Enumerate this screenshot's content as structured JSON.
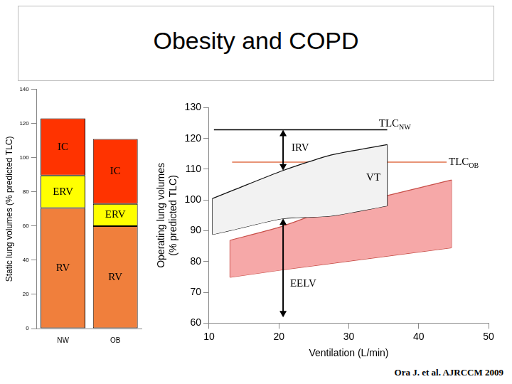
{
  "title": "Obesity and COPD",
  "source": "Ora J. et al. AJRCCM 2009",
  "chart_data": [
    {
      "type": "bar",
      "y_label": "Static lung volumes (% predicted TLC)",
      "categories": [
        "NW",
        "OB"
      ],
      "series": [
        {
          "name": "RV",
          "color": "#F07F3C",
          "values": [
            70.6,
            60
          ]
        },
        {
          "name": "ERV",
          "color": "#FFFF00",
          "values": [
            19,
            13
          ]
        },
        {
          "name": "IC",
          "color": "#FF3300",
          "values": [
            33.4,
            38
          ]
        }
      ],
      "stacked": true,
      "ylim": [
        0,
        140
      ],
      "yticks": [
        0,
        20,
        40,
        60,
        80,
        100,
        120,
        140
      ],
      "grid": false
    },
    {
      "type": "line",
      "x_label": "Ventilation (L/min)",
      "y_label": [
        "Operating lung volumes",
        "(% predicted TLC)"
      ],
      "series": [
        {
          "name": "NW",
          "color": "#F2F2F2",
          "x": [
            10.5,
            13.8,
            20.6,
            27.4,
            35.5
          ],
          "upper": [
            100.5,
            103.5,
            109.6,
            114.6,
            118
          ],
          "lower": [
            88.8,
            90.5,
            94,
            94.8,
            98.1
          ]
        },
        {
          "name": "OB",
          "color": "#F6A8A8",
          "x": [
            13,
            20.1,
            26.8,
            44.7
          ],
          "upper": [
            86.9,
            91.2,
            96.5,
            106.5
          ],
          "lower": [
            74.9,
            77.2,
            79.2,
            84.5
          ]
        }
      ],
      "lines": [
        {
          "y": 122.8,
          "x": [
            10.7,
            35.5
          ],
          "color": "#000000"
        },
        {
          "y": 112.3,
          "x": [
            13.3,
            44
          ],
          "color": "#E0704A"
        }
      ],
      "arrows": [
        {
          "x": 20.6,
          "y": [
            122.8,
            109.6
          ]
        },
        {
          "x": 20.6,
          "y": [
            94,
            61.9
          ]
        }
      ],
      "annotations": [
        {
          "text": "TLC",
          "sub": "NW",
          "x": 34.3,
          "y": 124.7
        },
        {
          "text": "TLC",
          "sub": "OB",
          "x": 44.3,
          "y": 112.3
        },
        {
          "text": "IRV",
          "x": 21.8,
          "y": 116.8
        },
        {
          "text": "VT",
          "x": 32.5,
          "y": 107.2
        },
        {
          "text": "EELV",
          "x": 21.6,
          "y": 72.7
        }
      ],
      "xlim": [
        10,
        50
      ],
      "xticks": [
        10,
        20,
        30,
        40,
        50
      ],
      "ylim": [
        60,
        130
      ],
      "yticks": [
        60,
        70,
        80,
        90,
        100,
        110,
        120,
        130
      ],
      "grid": false
    }
  ]
}
